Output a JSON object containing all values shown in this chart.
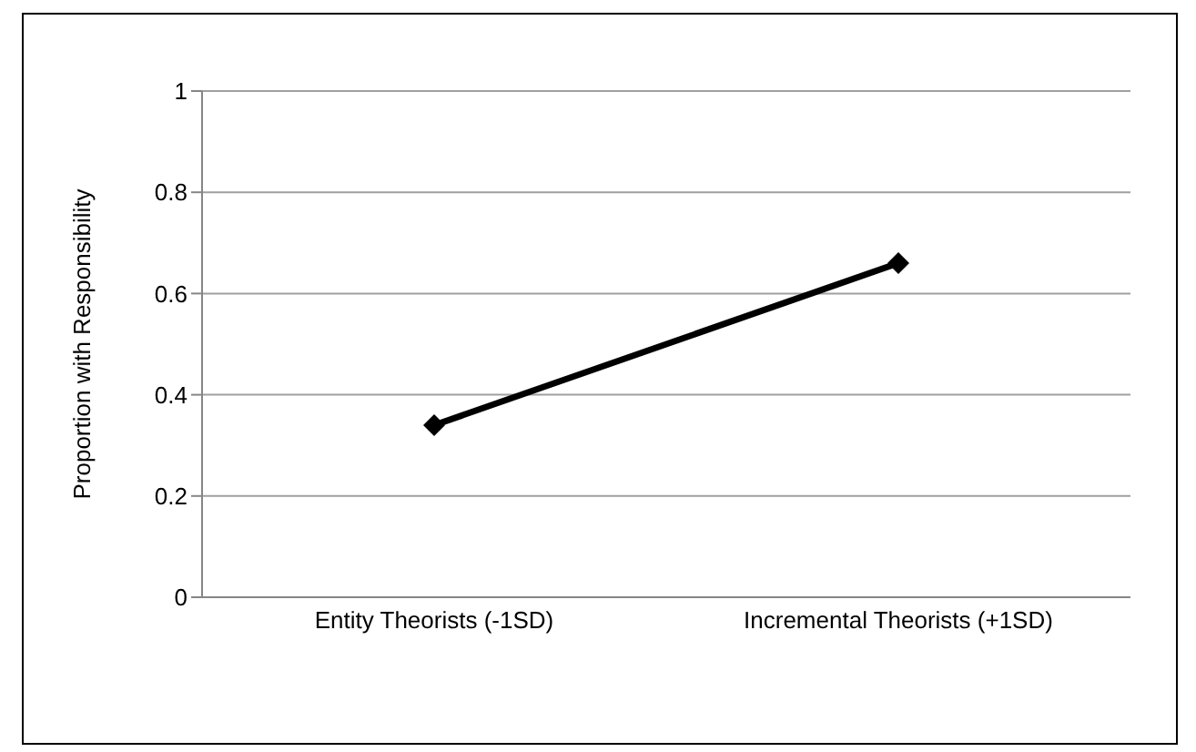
{
  "chart_data": {
    "type": "line",
    "ylabel": "Proportion with Responsibility",
    "categories": [
      "Entity Theorists (-1SD)",
      "Incremental Theorists (+1SD)"
    ],
    "series": [
      {
        "color": "#000000",
        "values": [
          0.34,
          0.66
        ]
      }
    ],
    "ylim": [
      0,
      1
    ],
    "yticks": [
      0,
      0.2,
      0.4,
      0.6,
      0.8,
      1
    ],
    "grid": "y",
    "marker": "diamond",
    "line_style": "solid"
  }
}
